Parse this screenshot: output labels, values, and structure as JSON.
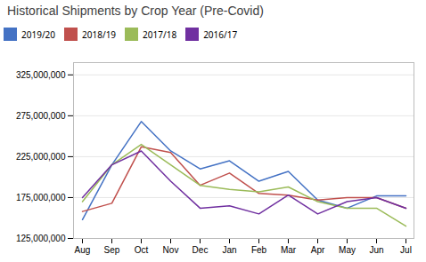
{
  "chart_data": {
    "type": "line",
    "title": "Historical Shipments by Crop Year (Pre-Covid)",
    "categories": [
      "Aug",
      "Sep",
      "Oct",
      "Nov",
      "Dec",
      "Jan",
      "Feb",
      "Mar",
      "Apr",
      "May",
      "Jun",
      "Jul"
    ],
    "series": [
      {
        "name": "2019/20",
        "color": "#4472c4",
        "values": [
          148000000,
          215000000,
          268000000,
          232000000,
          210000000,
          220000000,
          195000000,
          207000000,
          172000000,
          162000000,
          177000000,
          177000000
        ]
      },
      {
        "name": "2018/19",
        "color": "#c0504d",
        "values": [
          158000000,
          168000000,
          237000000,
          230000000,
          190000000,
          205000000,
          180000000,
          178000000,
          172000000,
          175000000,
          175000000,
          162000000
        ]
      },
      {
        "name": "2017/18",
        "color": "#9bbb59",
        "values": [
          170000000,
          215000000,
          240000000,
          215000000,
          190000000,
          185000000,
          182000000,
          188000000,
          170000000,
          162000000,
          162000000,
          140000000
        ]
      },
      {
        "name": "2016/17",
        "color": "#7030a0",
        "values": [
          175000000,
          215000000,
          232000000,
          195000000,
          162000000,
          165000000,
          155000000,
          178000000,
          155000000,
          170000000,
          175000000,
          162000000
        ]
      }
    ],
    "ylim": [
      125000000,
      340000000
    ],
    "yticks": [
      {
        "value": 125000000,
        "label": "125,000,000"
      },
      {
        "value": 175000000,
        "label": "175,000,000"
      },
      {
        "value": 225000000,
        "label": "225,000,000"
      },
      {
        "value": 275000000,
        "label": "275,000,000"
      },
      {
        "value": 325000000,
        "label": "325,000,000"
      }
    ],
    "grid": true,
    "legend": "top"
  }
}
